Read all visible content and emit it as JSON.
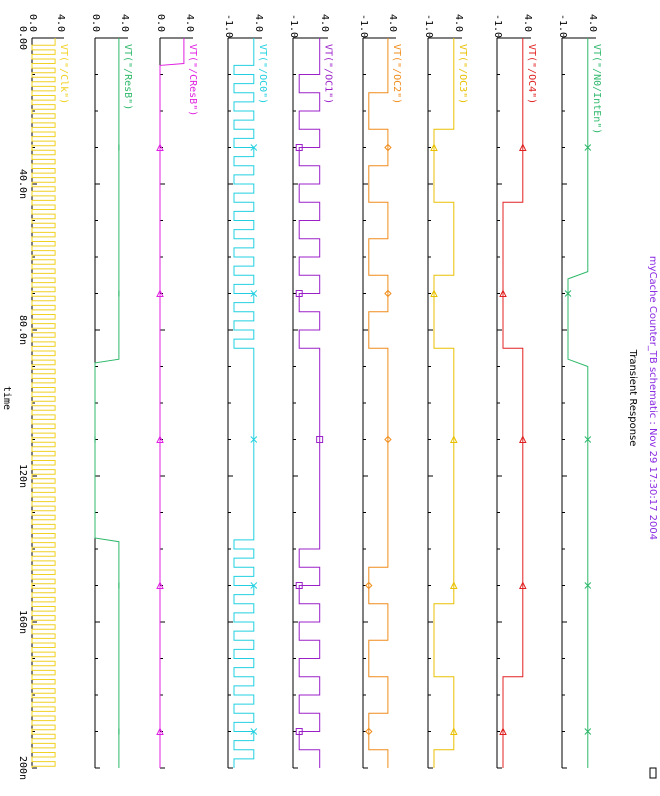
{
  "chart_data": {
    "type": "line",
    "title": "Transient Response",
    "subtitle": "myCache Counter_TB schematic : Nov 29 17:30:17 2004",
    "xlabel": "time",
    "x_ticks": [
      "0.00",
      "40.0n",
      "80.0n",
      "120n",
      "160n",
      "200n"
    ],
    "xlim": [
      0,
      200
    ],
    "x_unit": "ns",
    "series": [
      {
        "name": "VT(\"/N0/IntEn\")",
        "marker": "x",
        "color": "#2db86a",
        "y_ticks": [
          "-1.0",
          "4.0"
        ],
        "ylim": [
          -1,
          4
        ],
        "breakpoints": [
          0,
          64,
          66,
          88,
          90,
          200
        ],
        "levels": [
          3.3,
          3.3,
          0,
          0,
          3.3,
          3.3
        ]
      },
      {
        "name": "VT(\"/OC4\")",
        "marker": "triangle",
        "color": "#e02020",
        "y_ticks": [
          "-1.0",
          "4.0"
        ],
        "ylim": [
          -1,
          4
        ],
        "toggles": [
          45,
          85,
          175
        ],
        "initial": "high"
      },
      {
        "name": "VT(\"/OC3\")",
        "marker": "triangle",
        "color": "#e8c000",
        "y_ticks": [
          "-1.0",
          "4.0"
        ],
        "ylim": [
          -1,
          4
        ],
        "toggles": [
          25,
          45,
          65,
          85,
          155,
          175,
          195
        ],
        "initial": "high"
      },
      {
        "name": "VT(\"/OC2\")",
        "marker": "diamond",
        "color": "#f08c1a",
        "y_ticks": [
          "-1.0",
          "4.0"
        ],
        "ylim": [
          -1,
          4
        ],
        "toggles": [
          15,
          25,
          35,
          45,
          55,
          65,
          75,
          85,
          145,
          155,
          165,
          175,
          185,
          195
        ],
        "initial": "high"
      },
      {
        "name": "VT(\"/OC1\")",
        "marker": "square",
        "color": "#9b20c8",
        "y_ticks": [
          "-1.0",
          "4.0"
        ],
        "ylim": [
          -1,
          4
        ],
        "toggles": [
          10,
          15,
          20,
          25,
          30,
          35,
          40,
          45,
          50,
          55,
          60,
          65,
          70,
          75,
          80,
          85,
          140,
          145,
          150,
          155,
          160,
          165,
          170,
          175,
          180,
          185,
          190,
          195
        ],
        "initial": "high"
      },
      {
        "name": "VT(\"/OC0\")",
        "marker": "x",
        "color": "#20d0e0",
        "y_ticks": [
          "-1.0",
          "4.0"
        ],
        "ylim": [
          -1,
          4
        ],
        "period": 5,
        "from": 7.5,
        "to": 87.5,
        "from2": 137.5,
        "to2": 200,
        "initial": "high"
      },
      {
        "name": "VT(\"/CResB\")",
        "marker": "triangle",
        "color": "#e020e0",
        "y_ticks": [
          "0.0",
          "4.0"
        ],
        "ylim": [
          0,
          4
        ],
        "breakpoints": [
          0,
          7,
          7.5,
          200
        ],
        "levels": [
          3.3,
          3.3,
          0,
          0
        ]
      },
      {
        "name": "VT(\"/ResB\")",
        "marker": "dash",
        "color": "#2db86a",
        "y_ticks": [
          "0.0",
          "4.0"
        ],
        "ylim": [
          0,
          4
        ],
        "breakpoints": [
          0,
          88,
          89,
          137,
          138,
          200
        ],
        "levels": [
          3.3,
          3.3,
          0,
          0,
          3.3,
          3.3
        ]
      },
      {
        "name": "VT(\"/Clk\")",
        "marker": "dash",
        "color": "#f0d020",
        "y_ticks": [
          "0.0",
          "4.0"
        ],
        "ylim": [
          0,
          4
        ],
        "clock_period": 2.5,
        "initial": "high"
      }
    ],
    "grid": false,
    "legend": "inline"
  }
}
